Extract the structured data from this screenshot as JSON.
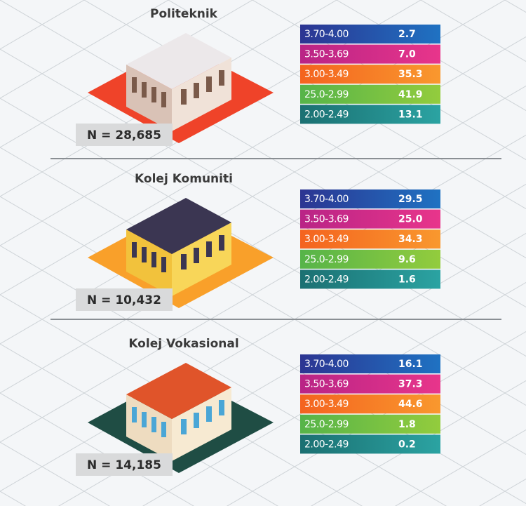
{
  "sections": [
    {
      "title": "Politeknik",
      "n_label": "N = 28,685",
      "rows": [
        {
          "range": "3.70-4.00",
          "value": "2.7"
        },
        {
          "range": "3.50-3.69",
          "value": "7.0"
        },
        {
          "range": "3.00-3.49",
          "value": "35.3"
        },
        {
          "range": "25.0-2.99",
          "value": "41.9"
        },
        {
          "range": "2.00-2.49",
          "value": "13.1"
        }
      ]
    },
    {
      "title": "Kolej Komuniti",
      "n_label": "N = 10,432",
      "rows": [
        {
          "range": "3.70-4.00",
          "value": "29.5"
        },
        {
          "range": "3.50-3.69",
          "value": "25.0"
        },
        {
          "range": "3.00-3.49",
          "value": "34.3"
        },
        {
          "range": "25.0-2.99",
          "value": "9.6"
        },
        {
          "range": "2.00-2.49",
          "value": "1.6"
        }
      ]
    },
    {
      "title": "Kolej Vokasional",
      "n_label": "N = 14,185",
      "rows": [
        {
          "range": "3.70-4.00",
          "value": "16.1"
        },
        {
          "range": "3.50-3.69",
          "value": "37.3"
        },
        {
          "range": "3.00-3.49",
          "value": "44.6"
        },
        {
          "range": "25.0-2.99",
          "value": "1.8"
        },
        {
          "range": "2.00-2.49",
          "value": "0.2"
        }
      ]
    }
  ]
}
